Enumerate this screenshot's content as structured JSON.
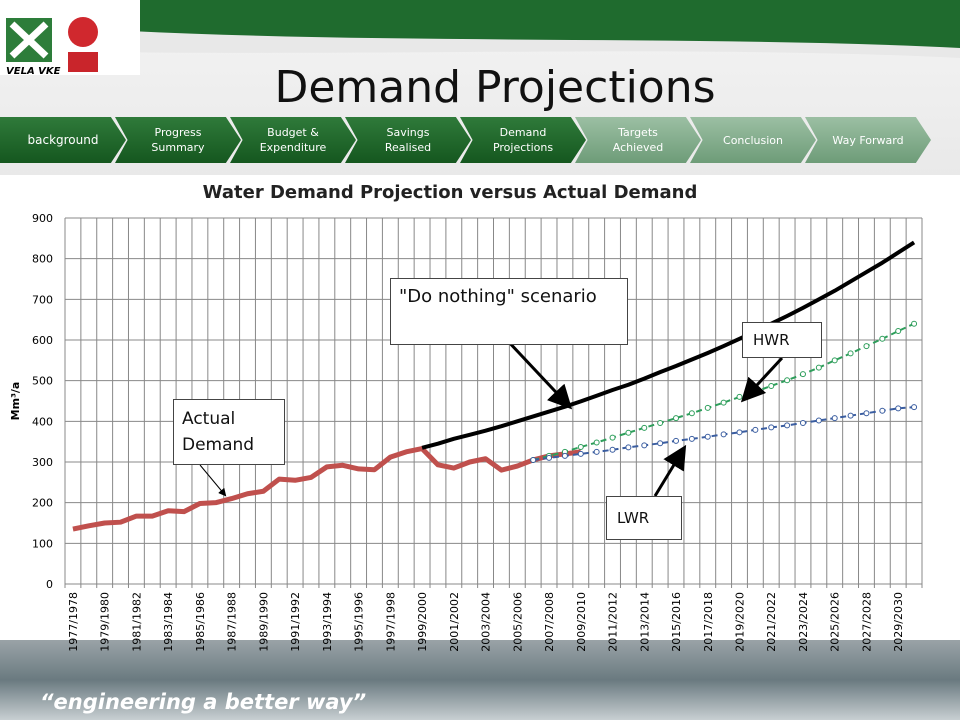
{
  "header": {
    "logo_text": "VELA VKE",
    "title": "Demand Projections",
    "nav": [
      {
        "label": "background",
        "active": true
      },
      {
        "label": "Progress Summary",
        "active": true
      },
      {
        "label": "Budget & Expenditure",
        "active": true
      },
      {
        "label": "Savings Realised",
        "active": true
      },
      {
        "label": "Demand Projections",
        "active": true
      },
      {
        "label": "Targets Achieved",
        "active": false
      },
      {
        "label": "Conclusion",
        "active": false
      },
      {
        "label": "Way Forward",
        "active": false
      }
    ]
  },
  "footer": {
    "slogan": "“engineering a better way”"
  },
  "chart_data": {
    "type": "line",
    "title": "Water Demand Projection versus Actual Demand",
    "y_label": "Mm³/a",
    "categories": [
      "1977/1978",
      null,
      "1979/1980",
      null,
      "1981/1982",
      null,
      "1983/1984",
      null,
      "1985/1986",
      null,
      "1987/1988",
      null,
      "1989/1990",
      null,
      "1991/1992",
      null,
      "1993/1994",
      null,
      "1995/1996",
      null,
      "1997/1998",
      null,
      "1999/2000",
      null,
      "2001/2002",
      null,
      "2003/2004",
      null,
      "2005/2006",
      null,
      "2007/2008",
      null,
      "2009/2010",
      null,
      "2011/2012",
      null,
      "2013/2014",
      null,
      "2015/2016",
      null,
      "2017/2018",
      null,
      "2019/2020",
      null,
      "2021/2022",
      null,
      "2023/2024",
      null,
      "2025/2026",
      null,
      "2027/2028",
      null,
      "2029/2030",
      null
    ],
    "series": [
      {
        "name": "Actual Demand",
        "color": "#c0504d",
        "style": "solid",
        "width": 5,
        "marker": "none",
        "values": [
          135,
          143,
          150,
          152,
          167,
          167,
          180,
          178,
          198,
          200,
          210,
          222,
          228,
          258,
          255,
          262,
          288,
          292,
          283,
          281,
          312,
          325,
          333,
          293,
          285,
          300,
          308,
          280,
          290,
          305,
          315,
          320,
          325,
          null,
          null,
          null,
          null,
          null,
          null,
          null,
          null,
          null,
          null,
          null,
          null,
          null,
          null,
          null,
          null,
          null,
          null,
          null,
          null,
          null
        ]
      },
      {
        "name": "\"Do nothing\" scenario",
        "color": "#000000",
        "style": "solid",
        "width": 4,
        "marker": "none",
        "values": [
          null,
          null,
          null,
          null,
          null,
          null,
          null,
          null,
          null,
          null,
          null,
          null,
          null,
          null,
          null,
          null,
          null,
          null,
          null,
          null,
          null,
          null,
          335,
          345,
          357,
          367,
          377,
          388,
          400,
          412,
          424,
          436,
          449,
          463,
          477,
          490,
          505,
          521,
          536,
          552,
          568,
          585,
          603,
          621,
          640,
          659,
          679,
          700,
          721,
          744,
          767,
          790,
          815,
          840
        ]
      },
      {
        "name": "HWR",
        "color": "#2e9e5b",
        "style": "dashed",
        "width": 2,
        "marker": "circle",
        "values": [
          null,
          null,
          null,
          null,
          null,
          null,
          null,
          null,
          null,
          null,
          null,
          null,
          null,
          null,
          null,
          null,
          null,
          null,
          null,
          null,
          null,
          null,
          null,
          null,
          null,
          null,
          null,
          null,
          null,
          305,
          315,
          325,
          337,
          348,
          360,
          372,
          384,
          396,
          408,
          420,
          433,
          446,
          460,
          473,
          487,
          501,
          516,
          532,
          550,
          567,
          585,
          603,
          622,
          640
        ]
      },
      {
        "name": "LWR",
        "color": "#3a5da0",
        "style": "dashed",
        "width": 2,
        "marker": "circle",
        "values": [
          null,
          null,
          null,
          null,
          null,
          null,
          null,
          null,
          null,
          null,
          null,
          null,
          null,
          null,
          null,
          null,
          null,
          null,
          null,
          null,
          null,
          null,
          null,
          null,
          null,
          null,
          null,
          null,
          null,
          305,
          310,
          315,
          320,
          325,
          330,
          336,
          341,
          346,
          352,
          357,
          362,
          368,
          373,
          379,
          385,
          390,
          396,
          402,
          408,
          414,
          420,
          426,
          432,
          435
        ]
      }
    ],
    "ylim": [
      0,
      900
    ],
    "yticks": [
      0,
      100,
      200,
      300,
      400,
      500,
      600,
      700,
      800,
      900
    ],
    "grid": true
  }
}
